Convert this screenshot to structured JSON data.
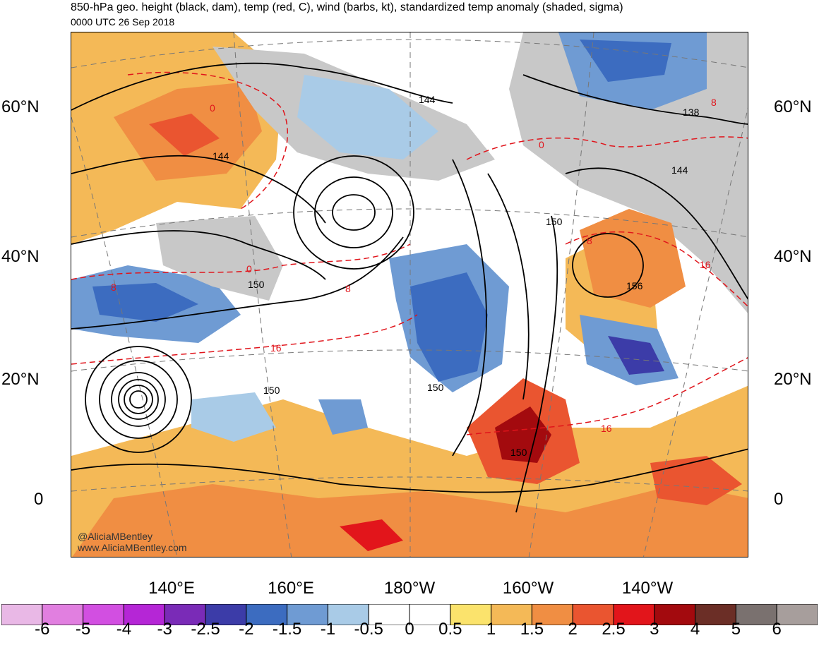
{
  "header": {
    "title": "850-hPa geo. height (black, dam), temp (red, C), wind (barbs, kt), standardized temp anomaly (shaded, sigma)",
    "subtitle": "0000 UTC 26 Sep 2018"
  },
  "map": {
    "lat_labels_left": [
      "60°N",
      "40°N",
      "20°N",
      "0"
    ],
    "lat_labels_right": [
      "60°N",
      "40°N",
      "20°N",
      "0"
    ],
    "lon_labels": [
      "140°E",
      "160°E",
      "180°W",
      "160°W",
      "140°W"
    ],
    "height_contour_labels": [
      "144",
      "144",
      "144",
      "138",
      "150",
      "150",
      "150",
      "150",
      "156",
      "150"
    ],
    "temp_contour_labels": [
      "0",
      "0",
      "8",
      "8",
      "16",
      "8",
      "0",
      "8",
      "16",
      "16"
    ],
    "credits": [
      "@AliciaMBentley",
      "www.AliciaMBentley.com"
    ]
  },
  "colorbar": {
    "labels": [
      "-6",
      "-5",
      "-4",
      "-3",
      "-2.5",
      "-2",
      "-1.5",
      "-1",
      "-0.5",
      "0",
      "0.5",
      "1",
      "1.5",
      "2",
      "2.5",
      "3",
      "4",
      "5",
      "6"
    ],
    "colors": [
      "#e9b8e6",
      "#e17fe0",
      "#d24fe1",
      "#b526d6",
      "#7a2bb7",
      "#3c3ca8",
      "#3c6cc0",
      "#6f9bd3",
      "#a9cbe7",
      "#ffffff",
      "#ffffff",
      "#fbe36c",
      "#f4b957",
      "#f08e43",
      "#ea5530",
      "#e2151b",
      "#a30a0e",
      "#6b2e26",
      "#7a716f",
      "#a79e9c"
    ]
  },
  "colors": {
    "land_gray": "#c8c8c8",
    "height_contour": "#000000",
    "temp_contour": "#e0141b"
  }
}
